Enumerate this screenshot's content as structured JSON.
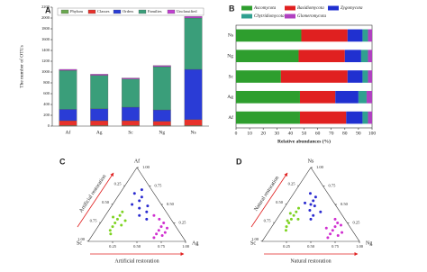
{
  "chart_data": [
    {
      "type": "bar",
      "panel": "A",
      "ylabel": "The number of OTUs",
      "categories": [
        "Af",
        "Ag",
        "Sc",
        "Ng",
        "Ns"
      ],
      "series": [
        {
          "name": "Phylum",
          "color": "#6aa84f",
          "values": [
            10,
            10,
            10,
            10,
            10
          ]
        },
        {
          "name": "Classes",
          "color": "#e8312b",
          "values": [
            90,
            90,
            90,
            80,
            110
          ]
        },
        {
          "name": "Orders",
          "color": "#2a3cd6",
          "values": [
            210,
            220,
            250,
            210,
            930
          ]
        },
        {
          "name": "Families",
          "color": "#3a9e7a",
          "values": [
            720,
            620,
            520,
            800,
            950
          ]
        },
        {
          "name": "Unclassified",
          "color": "#c040d0",
          "values": [
            20,
            20,
            20,
            20,
            30
          ]
        }
      ],
      "ylim": [
        0,
        2200
      ],
      "yticks": [
        0,
        200,
        400,
        600,
        800,
        1000,
        1200,
        1400,
        1600,
        1800,
        2000,
        2200
      ]
    },
    {
      "type": "hbar",
      "panel": "B",
      "xlabel": "Relative abundances (%)",
      "categories": [
        "Ns",
        "Ng",
        "Sc",
        "Ag",
        "Af"
      ],
      "series": [
        {
          "name": "Ascomycota",
          "color": "#2e9e2e",
          "values": [
            48,
            46,
            33,
            47,
            47
          ]
        },
        {
          "name": "Basidiomycota",
          "color": "#e02020",
          "values": [
            34,
            34,
            49,
            26,
            34
          ]
        },
        {
          "name": "Zygomycota",
          "color": "#2030d0",
          "values": [
            11,
            12,
            11,
            17,
            12
          ]
        },
        {
          "name": "Chytridiomycota",
          "color": "#30a090",
          "values": [
            4,
            5,
            4,
            6,
            4
          ]
        },
        {
          "name": "Glomeromycota",
          "color": "#b040c0",
          "values": [
            3,
            3,
            3,
            4,
            3
          ]
        }
      ],
      "xlim": [
        0,
        100
      ],
      "xticks": [
        0,
        10,
        20,
        30,
        40,
        50,
        60,
        70,
        80,
        90,
        100
      ]
    },
    {
      "type": "ternary",
      "panel": "C",
      "vertices": {
        "top": "Af",
        "left": "Sc",
        "right": "Ag"
      },
      "annotations": [
        "Artificial restoration",
        "Artificial restoration"
      ],
      "ticks": [
        {
          "value": 0.25,
          "label": "0.25"
        },
        {
          "value": 0.5,
          "label": "0.50"
        },
        {
          "value": 0.75,
          "label": "0.75"
        },
        {
          "value": 1,
          "label": "1.00"
        }
      ],
      "series": [
        {
          "color": "#7ed321",
          "top": [
            0.3,
            0.25,
            0.2,
            0.35,
            0.15,
            0.28,
            0.4,
            0.22,
            0.1,
            0.33
          ],
          "left": [
            0.55,
            0.6,
            0.65,
            0.5,
            0.7,
            0.48,
            0.45,
            0.55,
            0.72,
            0.58
          ]
        },
        {
          "color": "#2a2ad0",
          "top": [
            0.55,
            0.6,
            0.45,
            0.5,
            0.7,
            0.4,
            0.35,
            0.3,
            0.65,
            0.48
          ],
          "left": [
            0.2,
            0.15,
            0.25,
            0.3,
            0.1,
            0.2,
            0.3,
            0.25,
            0.2,
            0.15
          ]
        },
        {
          "color": "#d030d0",
          "top": [
            0.2,
            0.15,
            0.25,
            0.1,
            0.3,
            0.05,
            0.18,
            0.12,
            0.35,
            0.08
          ],
          "left": [
            0.15,
            0.2,
            0.1,
            0.25,
            0.12,
            0.3,
            0.1,
            0.15,
            0.15,
            0.2
          ]
        }
      ]
    },
    {
      "type": "ternary",
      "panel": "D",
      "vertices": {
        "top": "Ns",
        "left": "Sc",
        "right": "Ng"
      },
      "annotations": [
        "Natural restoration",
        "Natural restoration"
      ],
      "ticks": [
        {
          "value": 0.25,
          "label": "0.25"
        },
        {
          "value": 0.5,
          "label": "0.50"
        },
        {
          "value": 0.75,
          "label": "0.75"
        },
        {
          "value": 1,
          "label": "1.00"
        }
      ],
      "series": [
        {
          "color": "#7ed321",
          "top": [
            0.35,
            0.3,
            0.25,
            0.4,
            0.2,
            0.45,
            0.3,
            0.15,
            0.38,
            0.28
          ],
          "left": [
            0.5,
            0.55,
            0.6,
            0.45,
            0.65,
            0.4,
            0.48,
            0.68,
            0.52,
            0.6
          ]
        },
        {
          "color": "#2a2ad0",
          "top": [
            0.5,
            0.55,
            0.42,
            0.6,
            0.35,
            0.48,
            0.65,
            0.4,
            0.3,
            0.52
          ],
          "left": [
            0.25,
            0.2,
            0.3,
            0.15,
            0.3,
            0.22,
            0.18,
            0.2,
            0.35,
            0.3
          ]
        },
        {
          "color": "#d030d0",
          "top": [
            0.15,
            0.2,
            0.1,
            0.25,
            0.05,
            0.3,
            0.12,
            0.18,
            0.08,
            0.22
          ],
          "left": [
            0.2,
            0.15,
            0.25,
            0.1,
            0.3,
            0.1,
            0.12,
            0.25,
            0.18,
            0.08
          ]
        }
      ]
    }
  ]
}
